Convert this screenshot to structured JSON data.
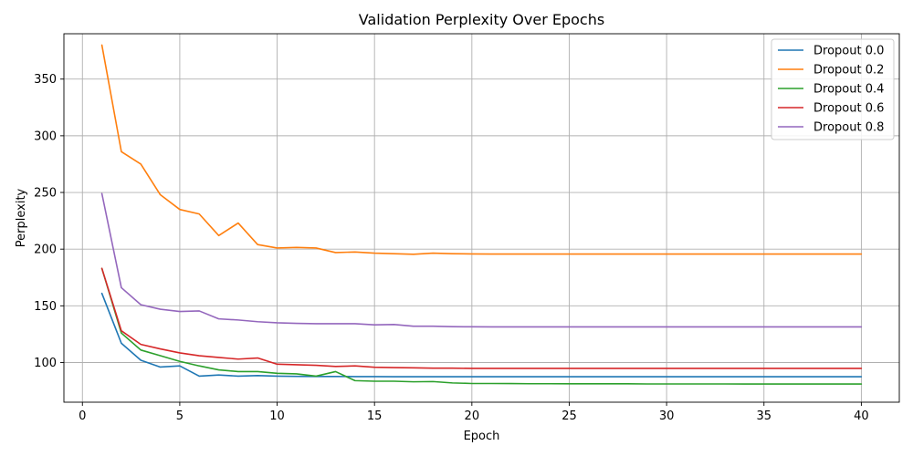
{
  "chart_data": {
    "type": "line",
    "title": "Validation Perplexity Over Epochs",
    "xlabel": "Epoch",
    "ylabel": "Perplexity",
    "xlim": [
      -0.95,
      41.95
    ],
    "ylim": [
      65,
      390
    ],
    "xticks": [
      0,
      5,
      10,
      15,
      20,
      25,
      30,
      35,
      40
    ],
    "yticks": [
      100,
      150,
      200,
      250,
      300,
      350
    ],
    "grid": true,
    "legend_position": "top-right",
    "x": [
      1,
      2,
      3,
      4,
      5,
      6,
      7,
      8,
      9,
      10,
      11,
      12,
      13,
      14,
      15,
      16,
      17,
      18,
      19,
      20,
      21,
      22,
      23,
      24,
      25,
      26,
      27,
      28,
      29,
      30,
      31,
      32,
      33,
      34,
      35,
      36,
      37,
      38,
      39,
      40
    ],
    "series": [
      {
        "name": "Dropout 0.0",
        "color": "#1f77b4",
        "values": [
          161,
          117,
          102,
          96,
          97,
          88,
          89,
          88,
          88.5,
          88,
          87.8,
          87.7,
          87.7,
          87.6,
          87.6,
          87.5,
          87.5,
          87.5,
          87.5,
          87.5,
          87.5,
          87.5,
          87.5,
          87.5,
          87.5,
          87.5,
          87.5,
          87.5,
          87.5,
          87.5,
          87.5,
          87.5,
          87.5,
          87.5,
          87.5,
          87.5,
          87.5,
          87.5,
          87.5,
          87.5
        ]
      },
      {
        "name": "Dropout 0.2",
        "color": "#ff7f0e",
        "values": [
          380,
          286,
          275,
          248,
          235,
          231,
          212,
          223,
          204,
          201,
          201.5,
          201,
          197,
          197.5,
          196.5,
          196,
          195.5,
          196.5,
          196,
          195.8,
          195.7,
          195.7,
          195.7,
          195.7,
          195.7,
          195.7,
          195.7,
          195.7,
          195.7,
          195.7,
          195.7,
          195.7,
          195.7,
          195.7,
          195.7,
          195.7,
          195.7,
          195.7,
          195.7,
          195.7
        ]
      },
      {
        "name": "Dropout 0.4",
        "color": "#2ca02c",
        "values": [
          183,
          126,
          111,
          106,
          101,
          97,
          93.5,
          92,
          92,
          90.5,
          90,
          88,
          92,
          84,
          83.5,
          83.5,
          83,
          83.2,
          82,
          81.5,
          81.5,
          81.4,
          81.3,
          81.3,
          81.2,
          81.2,
          81.2,
          81.2,
          81.1,
          81.1,
          81.1,
          81.1,
          81.1,
          81,
          81,
          81,
          81,
          81,
          81,
          81
        ]
      },
      {
        "name": "Dropout 0.6",
        "color": "#d62728",
        "values": [
          183,
          128,
          116,
          112,
          108.5,
          106,
          104.5,
          103,
          104,
          98.5,
          98,
          97.5,
          96.5,
          97,
          95.8,
          95.5,
          95.3,
          95,
          95,
          94.8,
          94.8,
          94.8,
          94.8,
          94.8,
          94.8,
          94.8,
          94.8,
          94.8,
          94.8,
          94.8,
          94.8,
          94.8,
          94.8,
          94.8,
          94.8,
          94.8,
          94.8,
          94.8,
          94.8,
          94.8
        ]
      },
      {
        "name": "Dropout 0.8",
        "color": "#9467bd",
        "values": [
          249,
          166,
          151,
          147,
          145,
          145.5,
          138.5,
          137.5,
          136,
          135,
          134.5,
          134.2,
          134.2,
          134.2,
          133.2,
          133.5,
          132,
          132,
          131.6,
          131.5,
          131.4,
          131.4,
          131.4,
          131.4,
          131.4,
          131.4,
          131.4,
          131.4,
          131.4,
          131.4,
          131.4,
          131.4,
          131.4,
          131.4,
          131.4,
          131.4,
          131.4,
          131.4,
          131.4,
          131.4
        ]
      }
    ]
  }
}
